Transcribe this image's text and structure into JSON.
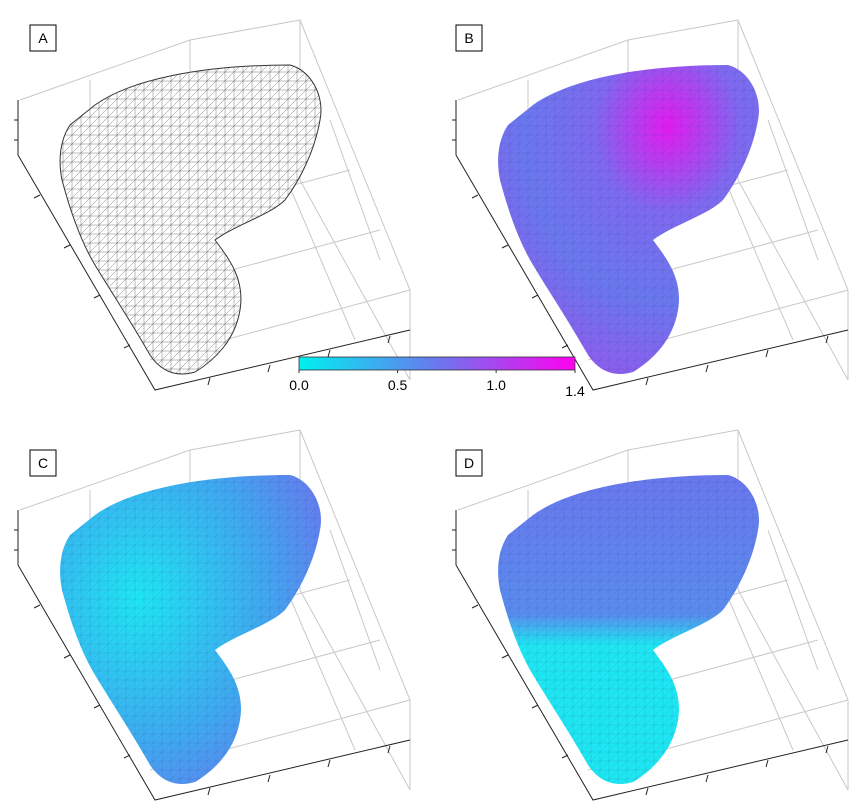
{
  "panels": [
    {
      "label": "A"
    },
    {
      "label": "B"
    },
    {
      "label": "C"
    },
    {
      "label": "D"
    }
  ],
  "colorbar": {
    "lim": [
      0,
      1.4
    ],
    "colors": [
      "#00f0f0",
      "#6a78ee",
      "#ff00f0"
    ],
    "ticks": [
      {
        "value": 0,
        "label": "0.0"
      },
      0.5,
      {
        "value": 1,
        "label": "1.0"
      },
      1.4
    ]
  }
}
